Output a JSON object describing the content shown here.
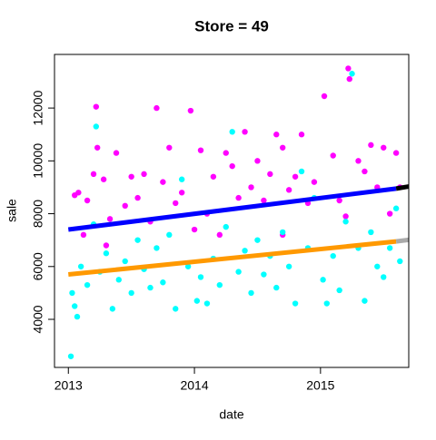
{
  "chart_data": {
    "type": "scatter",
    "title": "Store = 49",
    "xlabel": "date",
    "ylabel": "sale",
    "xlim": [
      2012.89,
      2015.7
    ],
    "ylim": [
      2180,
      14030
    ],
    "xticks": [
      2013,
      2014,
      2015
    ],
    "yticks": [
      4000,
      6000,
      8000,
      10000,
      12000
    ],
    "series": [
      {
        "color": "#ff00ff",
        "marker": "filled",
        "x": [
          2013.05,
          2013.08,
          2013.12,
          2013.15,
          2013.2,
          2013.22,
          2013.23,
          2013.28,
          2013.33,
          2013.38,
          2013.45,
          2013.5,
          2013.55,
          2013.6,
          2013.65,
          2013.7,
          2013.75,
          2013.8,
          2013.85,
          2013.9,
          2013.97,
          2014.05,
          2014.1,
          2014.15,
          2014.2,
          2014.25,
          2014.3,
          2014.35,
          2014.4,
          2014.45,
          2014.5,
          2014.55,
          2014.6,
          2014.65,
          2014.7,
          2014.75,
          2014.8,
          2014.85,
          2014.9,
          2014.95,
          2015.03,
          2015.1,
          2015.15,
          2015.22,
          2015.23,
          2015.3,
          2015.35,
          2015.4,
          2015.45,
          2015.5,
          2015.55,
          2015.6,
          2015.63,
          2013.3,
          2014.0,
          2014.7,
          2015.2
        ],
        "values": [
          8700,
          8800,
          7200,
          8500,
          9500,
          12050,
          10500,
          9300,
          7800,
          10300,
          8300,
          9400,
          8600,
          9500,
          7700,
          12000,
          9200,
          10500,
          8400,
          8800,
          11900,
          10400,
          8000,
          9400,
          7200,
          10300,
          9800,
          8600,
          11100,
          9000,
          10000,
          8500,
          9500,
          11000,
          10500,
          8900,
          9400,
          11000,
          8400,
          9200,
          12450,
          10200,
          8500,
          13500,
          13100,
          10000,
          9600,
          10600,
          9000,
          10500,
          8000,
          10300,
          9000,
          6800,
          7400,
          7200,
          7900
        ]
      },
      {
        "color": "#00ffff",
        "marker": "filled",
        "x": [
          2013.02,
          2013.03,
          2013.05,
          2013.07,
          2013.1,
          2013.15,
          2013.2,
          2013.22,
          2013.25,
          2013.3,
          2013.35,
          2013.4,
          2013.45,
          2013.5,
          2013.55,
          2013.6,
          2013.65,
          2013.7,
          2013.75,
          2013.8,
          2013.85,
          2013.9,
          2013.95,
          2014.02,
          2014.05,
          2014.1,
          2014.15,
          2014.2,
          2014.25,
          2014.3,
          2014.35,
          2014.4,
          2014.45,
          2014.5,
          2014.55,
          2014.6,
          2014.65,
          2014.7,
          2014.75,
          2014.8,
          2014.85,
          2014.9,
          2014.95,
          2015.02,
          2015.05,
          2015.1,
          2015.15,
          2015.2,
          2015.25,
          2015.3,
          2015.35,
          2015.4,
          2015.45,
          2015.5,
          2015.55,
          2015.6,
          2015.63
        ],
        "values": [
          2600,
          5000,
          4500,
          4100,
          6000,
          5300,
          7600,
          11300,
          5800,
          6500,
          4400,
          5500,
          6200,
          5000,
          7000,
          5900,
          5200,
          6700,
          5400,
          7200,
          4400,
          9300,
          6000,
          4700,
          5600,
          4600,
          6300,
          5300,
          7500,
          11100,
          5800,
          6600,
          5000,
          7000,
          5700,
          6400,
          5200,
          7300,
          6000,
          4600,
          9600,
          6700,
          8600,
          5500,
          4600,
          6400,
          5100,
          7700,
          13300,
          6700,
          4700,
          7300,
          6000,
          5600,
          6700,
          8200,
          6200
        ]
      },
      {
        "color": "#0000ff",
        "marker": "trend",
        "x": [
          2013,
          2015.6
        ],
        "values": [
          7400,
          8950
        ]
      },
      {
        "color": "#000000",
        "marker": "trend",
        "x": [
          2015.6,
          2015.7
        ],
        "values": [
          8950,
          9030
        ]
      },
      {
        "color": "#ff9900",
        "marker": "trend",
        "x": [
          2013,
          2015.6
        ],
        "values": [
          5700,
          6950
        ]
      },
      {
        "color": "#aaaaaa",
        "marker": "trend",
        "x": [
          2015.6,
          2015.7
        ],
        "values": [
          6950,
          7010
        ]
      }
    ]
  }
}
